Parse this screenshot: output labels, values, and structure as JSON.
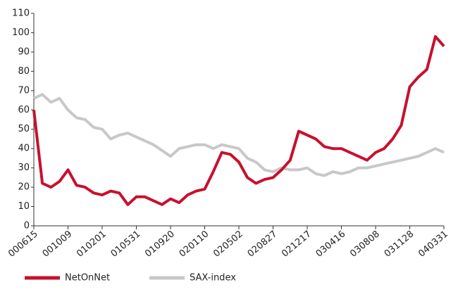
{
  "chart_data": {
    "type": "line",
    "categories": [
      "000615",
      null,
      null,
      null,
      "001009",
      null,
      null,
      null,
      "010201",
      null,
      null,
      null,
      "010531",
      null,
      null,
      null,
      "010920",
      null,
      null,
      null,
      "020110",
      null,
      null,
      null,
      "020502",
      null,
      null,
      null,
      "020827",
      null,
      null,
      null,
      "021217",
      null,
      null,
      null,
      "030416",
      null,
      null,
      null,
      "030808",
      null,
      null,
      null,
      "031128",
      null,
      null,
      null,
      "040331"
    ],
    "series": [
      {
        "name": "NetOnNet",
        "color": "#c8102e",
        "values": [
          60,
          22,
          20,
          23,
          29,
          21,
          20,
          17,
          16,
          18,
          17,
          11,
          15,
          15,
          13,
          11,
          14,
          12,
          16,
          18,
          19,
          28,
          38,
          37,
          33,
          25,
          22,
          24,
          25,
          29,
          34,
          49,
          47,
          45,
          41,
          40,
          40,
          38,
          36,
          34,
          38,
          40,
          45,
          52,
          72,
          77,
          81,
          98,
          93
        ]
      },
      {
        "name": "SAX-index",
        "color": "#c8c8c8",
        "values": [
          66,
          68,
          64,
          66,
          60,
          56,
          55,
          51,
          50,
          45,
          47,
          48,
          46,
          44,
          42,
          39,
          36,
          40,
          41,
          42,
          42,
          40,
          42,
          41,
          40,
          35,
          33,
          29,
          28,
          30,
          29,
          29,
          30,
          27,
          26,
          28,
          27,
          28,
          30,
          30,
          31,
          32,
          33,
          34,
          35,
          36,
          38,
          40,
          38
        ]
      }
    ],
    "ylim": [
      0,
      110
    ],
    "yticks": [
      0,
      10,
      20,
      30,
      40,
      50,
      60,
      70,
      80,
      90,
      100,
      110
    ],
    "grid": false,
    "legend": "bottom-left"
  }
}
